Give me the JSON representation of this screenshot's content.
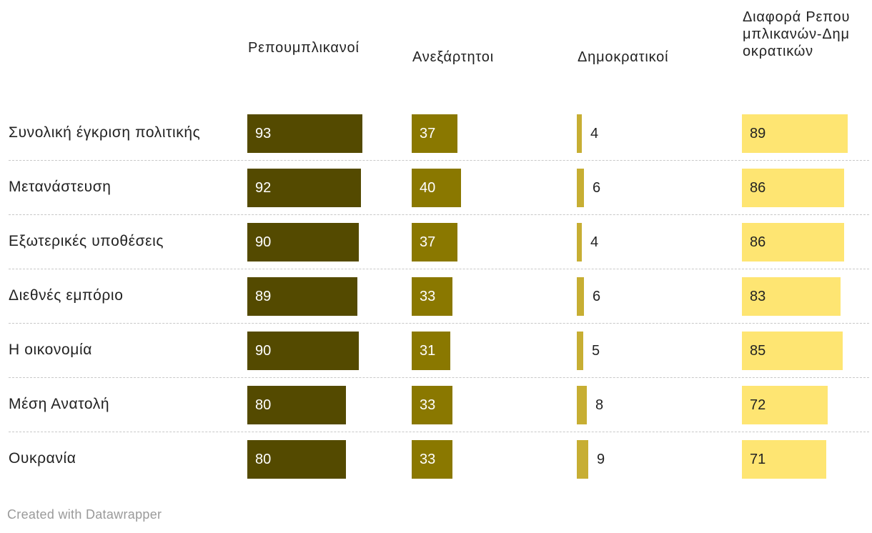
{
  "chart_data": {
    "type": "table",
    "columns": [
      "Ρεπουμπλικανοί",
      "Ανεξάρτητοι",
      "Δημοκρατικοί",
      "Διαφορά Ρεπουμπλικανών-Δημοκρατικών"
    ],
    "rows": [
      {
        "label": "Συνολική έγκριση πολιτικής",
        "values": [
          93,
          37,
          4,
          89
        ]
      },
      {
        "label": "Μετανάστευση",
        "values": [
          92,
          40,
          6,
          86
        ]
      },
      {
        "label": "Εξωτερικές υποθέσεις",
        "values": [
          90,
          37,
          4,
          86
        ]
      },
      {
        "label": "Διεθνές εμπόριο",
        "values": [
          89,
          33,
          6,
          83
        ]
      },
      {
        "label": "Η οικονομία",
        "values": [
          90,
          31,
          5,
          85
        ]
      },
      {
        "label": "Μέση Ανατολή",
        "values": [
          80,
          33,
          8,
          72
        ]
      },
      {
        "label": "Ουκρανία",
        "values": [
          80,
          33,
          9,
          71
        ]
      }
    ],
    "colors": [
      "#544a00",
      "#8a7800",
      "#c7ae33",
      "#fee572"
    ],
    "value_text_colors": [
      "#ffffff",
      "#ffffff",
      "#222222",
      "#222222"
    ],
    "scale_max": 100
  },
  "footer": {
    "credit": "Created with Datawrapper"
  }
}
